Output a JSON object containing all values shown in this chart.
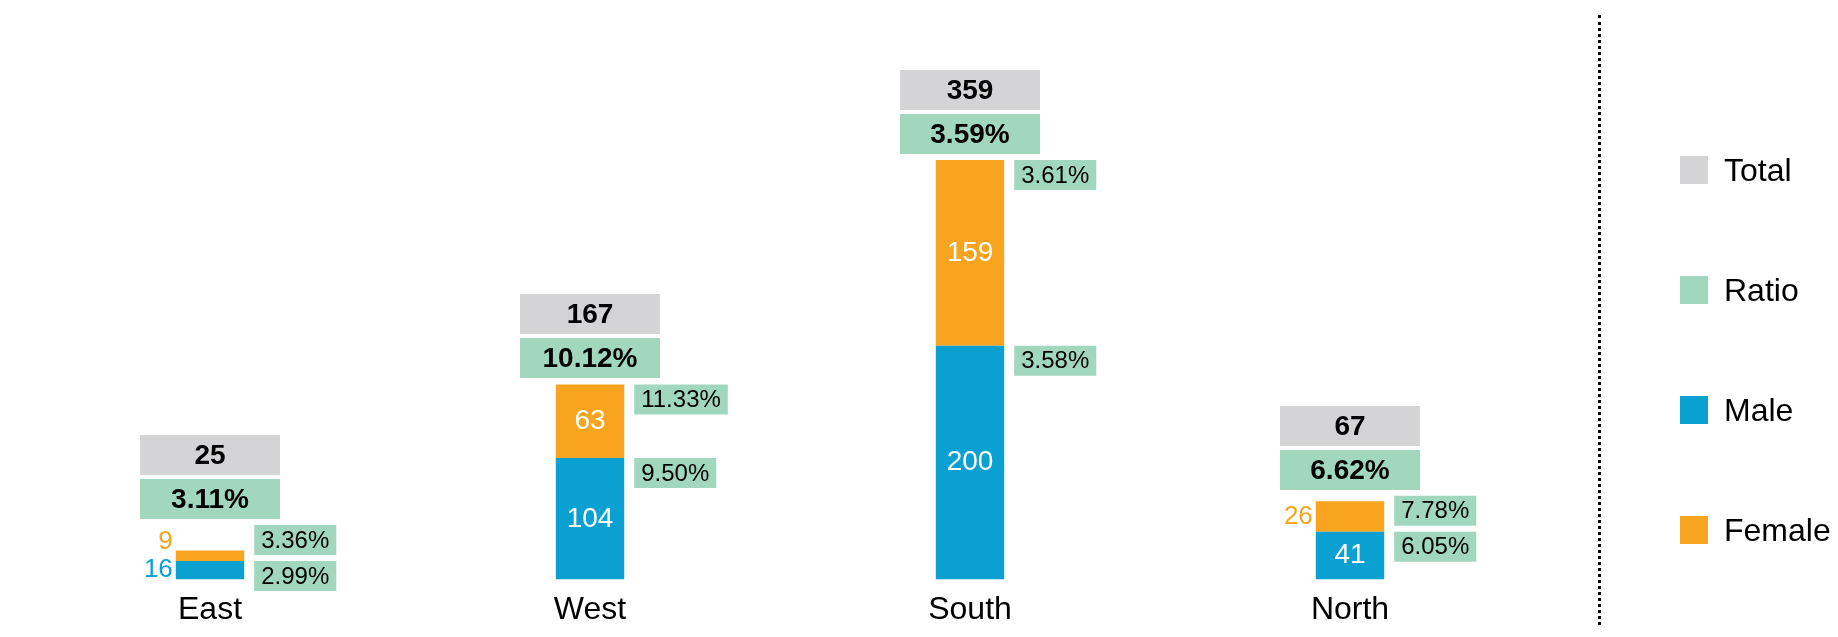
{
  "chart_data": {
    "type": "bar",
    "stacked": true,
    "categories": [
      "East",
      "West",
      "South",
      "North"
    ],
    "series": [
      {
        "name": "Total",
        "color": "#d4d4d6",
        "values": [
          null,
          null,
          null,
          null
        ]
      },
      {
        "name": "Ratio",
        "color": "#a2d7bf",
        "values": [
          null,
          null,
          null,
          null
        ]
      },
      {
        "name": "Male",
        "color": "#0aa0d2",
        "values": [
          16,
          104,
          200,
          41
        ]
      },
      {
        "name": "Female",
        "color": "#f8a41e",
        "values": [
          9,
          63,
          159,
          26
        ]
      }
    ],
    "data_labels": true,
    "totals": [
      "25",
      "167",
      "359",
      "67"
    ],
    "annotations": [
      "3.11%",
      "10.12%",
      "3.59%",
      "6.62%",
      {
        "text": "2.99%",
        "x": "East",
        "y": 16
      },
      {
        "text": "3.36%",
        "x": "East",
        "y": 25
      },
      {
        "text": "9.50%",
        "x": "West",
        "y": 104
      },
      {
        "text": "11.33%",
        "x": "West",
        "y": 167
      },
      {
        "text": "3.58%",
        "x": "South",
        "y": 200
      },
      {
        "text": "3.61%",
        "x": "South",
        "y": 359
      },
      {
        "text": "6.05%",
        "x": "North",
        "y": 41
      },
      {
        "text": "7.78%",
        "x": "North",
        "y": 67
      }
    ],
    "legend": "right",
    "grid": false,
    "tick_labels": "x"
  }
}
